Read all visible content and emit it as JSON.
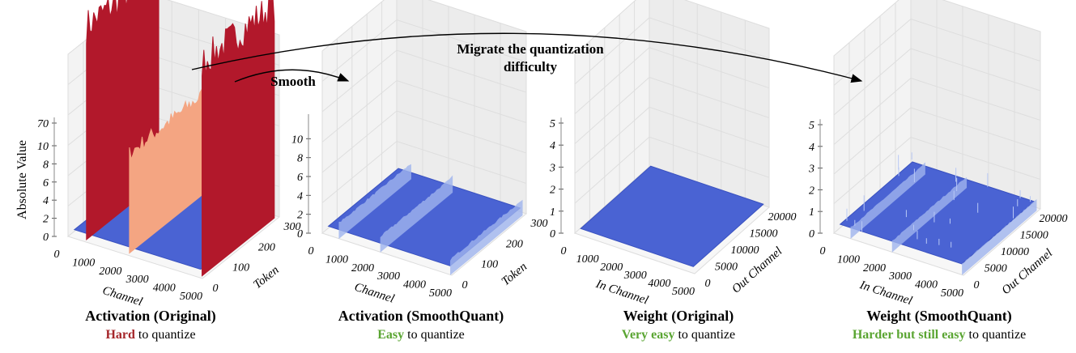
{
  "annotations": {
    "migrate": [
      "Migrate the quantization",
      "difficulty"
    ],
    "smooth": "Smooth"
  },
  "colors": {
    "hard": "#a5262a",
    "easy": "#5aa532",
    "surface_low": "#4a63d3",
    "surface_high": "#b2182b",
    "surface_mid": "#f4a582"
  },
  "chart_data": [
    {
      "type": "surface3d",
      "xlabel": "Channel",
      "ylabel": "Token",
      "zlabel": "Absolute Value",
      "xticks": [
        0,
        1000,
        2000,
        3000,
        4000,
        5000
      ],
      "yticks": [
        0,
        100,
        200,
        300
      ],
      "zticks": [
        "0",
        "2",
        "4",
        "6",
        "8",
        "10",
        "70"
      ],
      "zlim": [
        0,
        70
      ],
      "z_axis_break": true,
      "outlier_channels": [
        {
          "channel": 600,
          "level": "very high"
        },
        {
          "channel": 2200,
          "level": "high"
        },
        {
          "channel": 4900,
          "level": "very high"
        }
      ],
      "baseline_level": 0.5,
      "title": "Activation (Original)",
      "subtitle": {
        "emph": "Hard",
        "rest": " to quantize",
        "emph_color": "hard"
      }
    },
    {
      "type": "surface3d",
      "xlabel": "Channel",
      "ylabel": "Token",
      "zlabel": "",
      "xticks": [
        0,
        1000,
        2000,
        3000,
        4000,
        5000
      ],
      "yticks": [
        0,
        100,
        200,
        300
      ],
      "zticks": [
        "0",
        "2",
        "4",
        "6",
        "8",
        "10"
      ],
      "zlim": [
        0,
        12
      ],
      "outlier_channels": [
        {
          "channel": 600,
          "level": "low"
        },
        {
          "channel": 2200,
          "level": "low"
        },
        {
          "channel": 4900,
          "level": "low"
        }
      ],
      "baseline_level": 0.5,
      "title": "Activation (SmoothQuant)",
      "subtitle": {
        "emph": "Easy",
        "rest": " to quantize",
        "emph_color": "easy"
      }
    },
    {
      "type": "surface3d",
      "xlabel": "In Channel",
      "ylabel": "Out Channel",
      "zlabel": "",
      "xticks": [
        0,
        1000,
        2000,
        3000,
        4000,
        5000
      ],
      "yticks": [
        0,
        5000,
        10000,
        15000,
        20000
      ],
      "zticks": [
        "0",
        "1",
        "2",
        "3",
        "4",
        "5"
      ],
      "zlim": [
        0,
        5
      ],
      "outlier_channels": [],
      "baseline_level": 0.1,
      "title": "Weight (Original)",
      "subtitle": {
        "emph": "Very easy",
        "rest": " to quantize",
        "emph_color": "easy"
      }
    },
    {
      "type": "surface3d",
      "xlabel": "In Channel",
      "ylabel": "Out Channel",
      "zlabel": "",
      "xticks": [
        0,
        1000,
        2000,
        3000,
        4000,
        5000
      ],
      "yticks": [
        0,
        5000,
        10000,
        15000,
        20000
      ],
      "zticks": [
        "0",
        "1",
        "2",
        "3",
        "4",
        "5"
      ],
      "zlim": [
        0,
        5
      ],
      "outlier_channels": [
        {
          "channel": 600,
          "level": "low"
        },
        {
          "channel": 2200,
          "level": "low"
        },
        {
          "channel": 4900,
          "level": "low"
        }
      ],
      "baseline_level": 0.3,
      "title": "Weight (SmoothQuant)",
      "subtitle": {
        "emph": "Harder but still easy",
        "rest": " to quantize",
        "emph_color": "easy"
      }
    }
  ]
}
